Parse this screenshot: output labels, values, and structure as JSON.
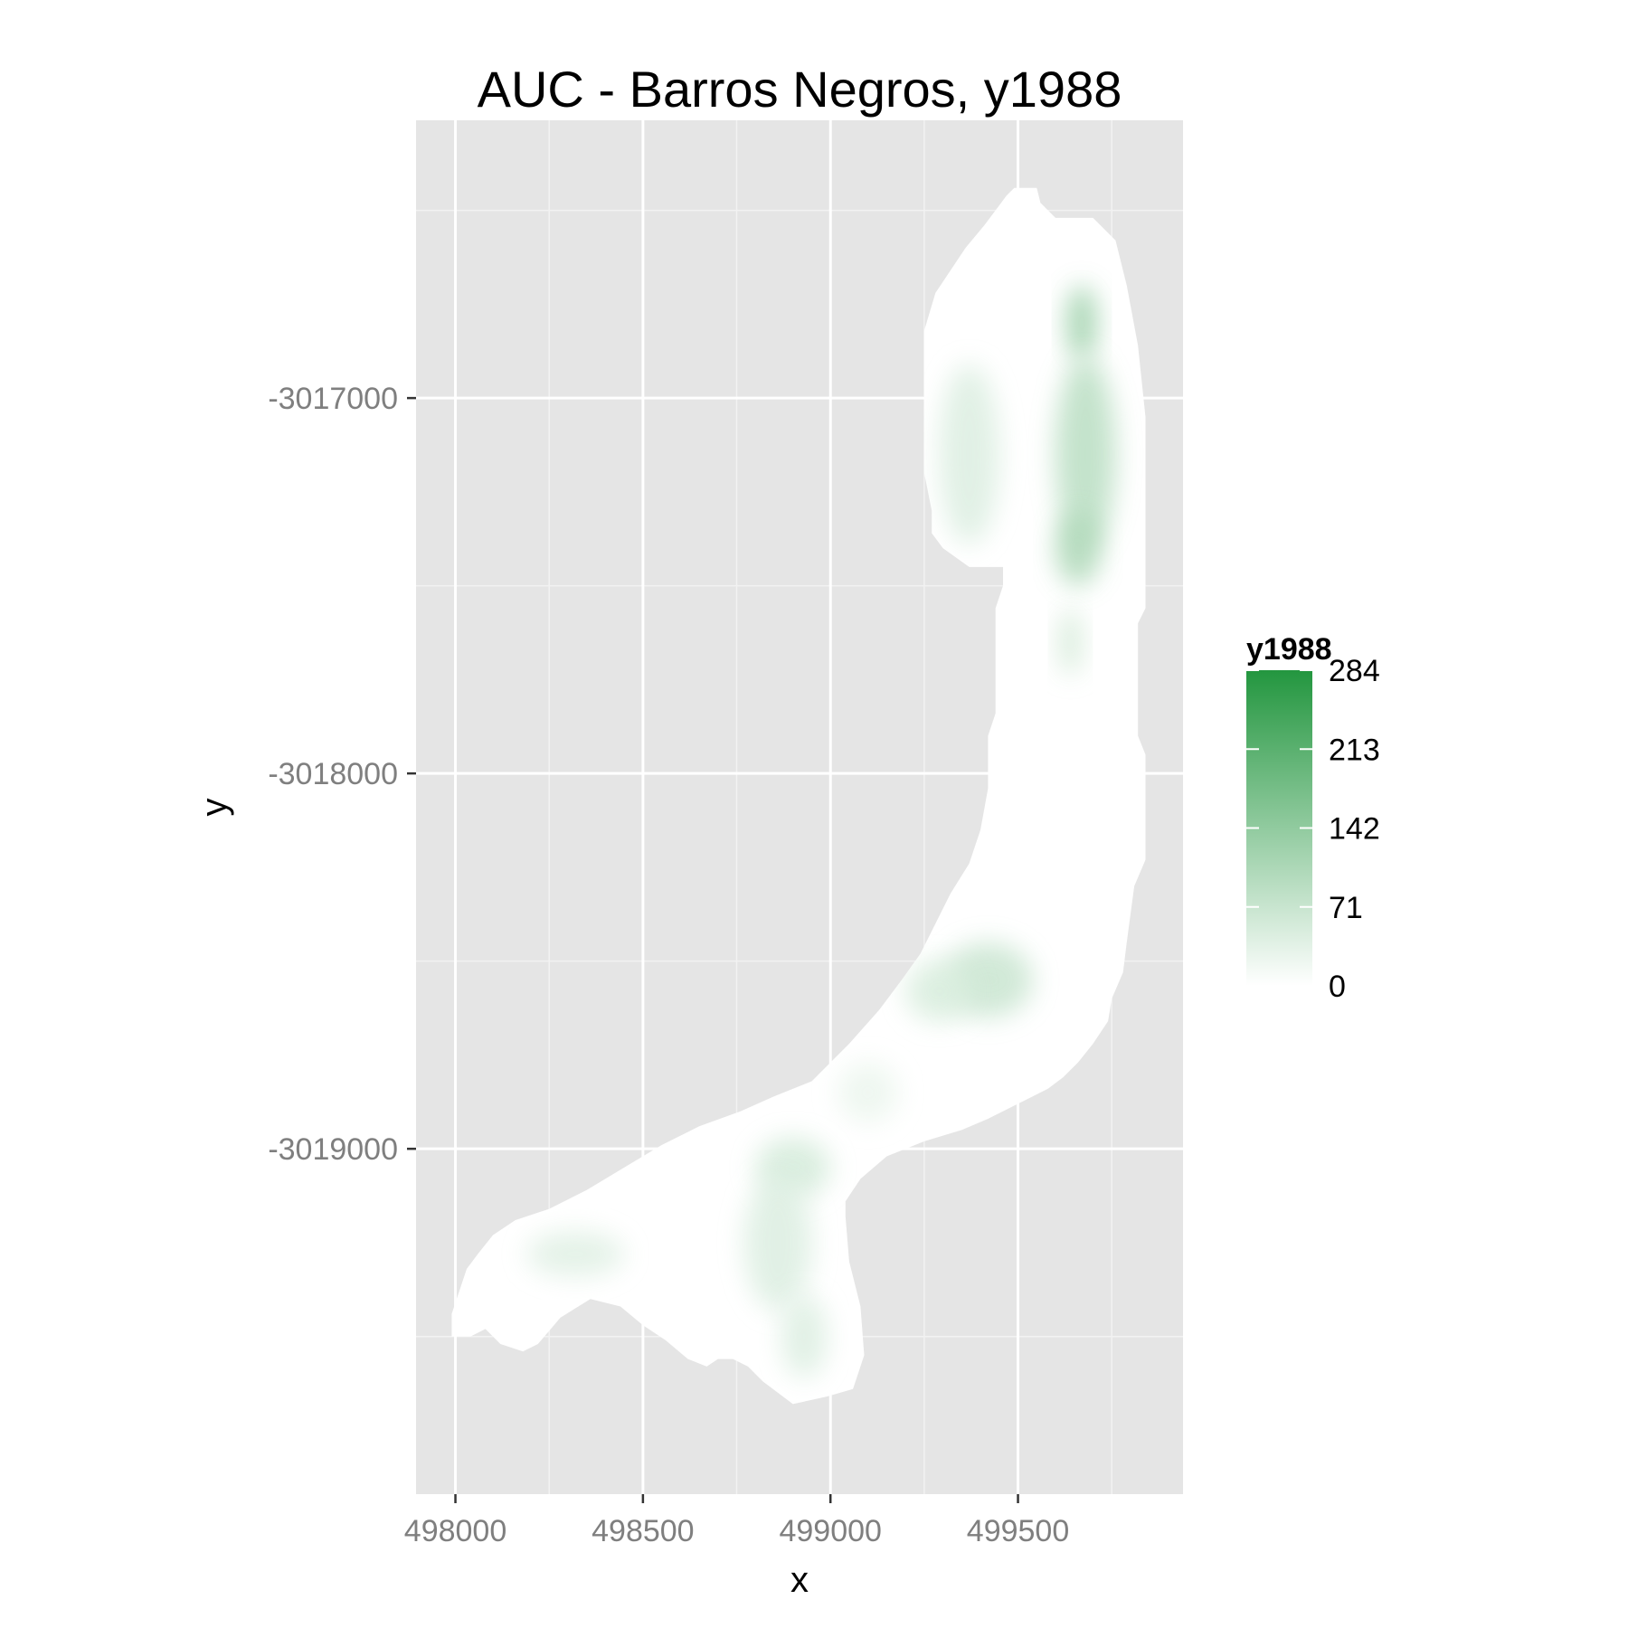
{
  "chart_data": {
    "type": "heatmap",
    "title": "AUC - Barros Negros, y1988",
    "xlabel": "x",
    "ylabel": "y",
    "xlim": [
      497895,
      499940
    ],
    "ylim": [
      -3019920,
      -3016260
    ],
    "x_ticks": [
      498000,
      498500,
      499000,
      499500
    ],
    "x_tick_labels": [
      "498000",
      "498500",
      "499000",
      "499500"
    ],
    "y_ticks": [
      -3017000,
      -3018000,
      -3019000
    ],
    "y_tick_labels": [
      "-3017000",
      "-3018000",
      "-3019000"
    ],
    "grid": true,
    "legend": {
      "title": "y1988",
      "position": "right",
      "min": 0,
      "max": 284,
      "breaks": [
        0,
        71,
        142,
        213,
        284
      ],
      "break_labels": [
        "0",
        "71",
        "142",
        "213",
        "284"
      ],
      "low_color": "#ffffff",
      "high_color": "#23963f"
    },
    "colors": {
      "panel": "#e5e5e5",
      "grid_major": "#ffffff",
      "grid_minor": "#f2f2f2",
      "region_fill": "#ffffff"
    },
    "region_outline": [
      [
        499490,
        -3016440
      ],
      [
        499550,
        -3016440
      ],
      [
        499560,
        -3016480
      ],
      [
        499600,
        -3016520
      ],
      [
        499700,
        -3016520
      ],
      [
        499760,
        -3016580
      ],
      [
        499790,
        -3016700
      ],
      [
        499820,
        -3016860
      ],
      [
        499840,
        -3017050
      ],
      [
        499840,
        -3017560
      ],
      [
        499820,
        -3017600
      ],
      [
        499820,
        -3017900
      ],
      [
        499840,
        -3017950
      ],
      [
        499840,
        -3018230
      ],
      [
        499810,
        -3018300
      ],
      [
        499790,
        -3018450
      ],
      [
        499780,
        -3018530
      ],
      [
        499750,
        -3018600
      ],
      [
        499740,
        -3018660
      ],
      [
        499700,
        -3018720
      ],
      [
        499660,
        -3018770
      ],
      [
        499620,
        -3018810
      ],
      [
        499580,
        -3018840
      ],
      [
        499540,
        -3018860
      ],
      [
        499480,
        -3018890
      ],
      [
        499420,
        -3018920
      ],
      [
        499350,
        -3018950
      ],
      [
        499250,
        -3018980
      ],
      [
        499150,
        -3019020
      ],
      [
        499080,
        -3019080
      ],
      [
        499040,
        -3019140
      ],
      [
        499040,
        -3019180
      ],
      [
        499050,
        -3019300
      ],
      [
        499080,
        -3019420
      ],
      [
        499090,
        -3019550
      ],
      [
        499060,
        -3019640
      ],
      [
        498990,
        -3019660
      ],
      [
        498900,
        -3019680
      ],
      [
        498820,
        -3019620
      ],
      [
        498780,
        -3019580
      ],
      [
        498740,
        -3019560
      ],
      [
        498700,
        -3019560
      ],
      [
        498670,
        -3019580
      ],
      [
        498620,
        -3019560
      ],
      [
        498560,
        -3019510
      ],
      [
        498500,
        -3019470
      ],
      [
        498440,
        -3019420
      ],
      [
        498360,
        -3019400
      ],
      [
        498280,
        -3019450
      ],
      [
        498220,
        -3019520
      ],
      [
        498180,
        -3019540
      ],
      [
        498120,
        -3019520
      ],
      [
        498080,
        -3019480
      ],
      [
        498040,
        -3019500
      ],
      [
        497990,
        -3019500
      ],
      [
        497990,
        -3019440
      ],
      [
        498010,
        -3019380
      ],
      [
        498030,
        -3019320
      ],
      [
        498060,
        -3019280
      ],
      [
        498100,
        -3019230
      ],
      [
        498160,
        -3019190
      ],
      [
        498250,
        -3019160
      ],
      [
        498350,
        -3019110
      ],
      [
        498450,
        -3019050
      ],
      [
        498550,
        -3018990
      ],
      [
        498650,
        -3018940
      ],
      [
        498760,
        -3018900
      ],
      [
        498850,
        -3018860
      ],
      [
        498950,
        -3018820
      ],
      [
        499050,
        -3018720
      ],
      [
        499130,
        -3018630
      ],
      [
        499190,
        -3018550
      ],
      [
        499240,
        -3018480
      ],
      [
        499280,
        -3018400
      ],
      [
        499320,
        -3018320
      ],
      [
        499370,
        -3018240
      ],
      [
        499400,
        -3018150
      ],
      [
        499420,
        -3018040
      ],
      [
        499420,
        -3017900
      ],
      [
        499440,
        -3017840
      ],
      [
        499440,
        -3017560
      ],
      [
        499460,
        -3017500
      ],
      [
        499460,
        -3017450
      ],
      [
        499370,
        -3017450
      ],
      [
        499300,
        -3017400
      ],
      [
        499270,
        -3017360
      ],
      [
        499270,
        -3017300
      ],
      [
        499250,
        -3017200
      ],
      [
        499250,
        -3016820
      ],
      [
        499280,
        -3016720
      ],
      [
        499320,
        -3016660
      ],
      [
        499360,
        -3016600
      ],
      [
        499410,
        -3016540
      ],
      [
        499440,
        -3016500
      ],
      [
        499470,
        -3016460
      ]
    ],
    "hotspots": [
      {
        "x": 499670,
        "y": -3016800,
        "rx": 40,
        "ry": 100,
        "value": 130
      },
      {
        "x": 499680,
        "y": -3017150,
        "rx": 80,
        "ry": 260,
        "value": 90
      },
      {
        "x": 499660,
        "y": -3017400,
        "rx": 60,
        "ry": 100,
        "value": 105
      },
      {
        "x": 499640,
        "y": -3017650,
        "rx": 30,
        "ry": 90,
        "value": 60
      },
      {
        "x": 499370,
        "y": -3017150,
        "rx": 80,
        "ry": 240,
        "value": 45
      },
      {
        "x": 499420,
        "y": -3018550,
        "rx": 120,
        "ry": 100,
        "value": 70
      },
      {
        "x": 499290,
        "y": -3018580,
        "rx": 90,
        "ry": 80,
        "value": 50
      },
      {
        "x": 498900,
        "y": -3019050,
        "rx": 100,
        "ry": 80,
        "value": 55
      },
      {
        "x": 498860,
        "y": -3019250,
        "rx": 90,
        "ry": 180,
        "value": 45
      },
      {
        "x": 498930,
        "y": -3019500,
        "rx": 60,
        "ry": 110,
        "value": 45
      },
      {
        "x": 498320,
        "y": -3019280,
        "rx": 130,
        "ry": 60,
        "value": 40
      },
      {
        "x": 499100,
        "y": -3018850,
        "rx": 80,
        "ry": 80,
        "value": 25
      }
    ]
  }
}
